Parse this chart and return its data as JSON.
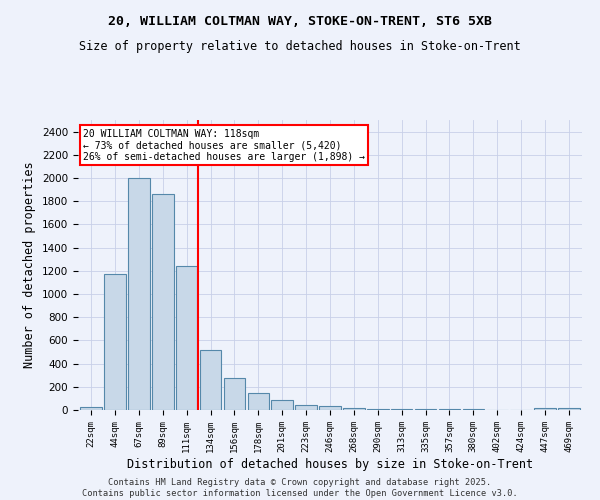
{
  "title1": "20, WILLIAM COLTMAN WAY, STOKE-ON-TRENT, ST6 5XB",
  "title2": "Size of property relative to detached houses in Stoke-on-Trent",
  "xlabel": "Distribution of detached houses by size in Stoke-on-Trent",
  "ylabel": "Number of detached properties",
  "categories": [
    "22sqm",
    "44sqm",
    "67sqm",
    "89sqm",
    "111sqm",
    "134sqm",
    "156sqm",
    "178sqm",
    "201sqm",
    "223sqm",
    "246sqm",
    "268sqm",
    "290sqm",
    "313sqm",
    "335sqm",
    "357sqm",
    "380sqm",
    "402sqm",
    "424sqm",
    "447sqm",
    "469sqm"
  ],
  "values": [
    25,
    1170,
    2000,
    1860,
    1240,
    520,
    275,
    150,
    90,
    40,
    35,
    20,
    12,
    7,
    6,
    5,
    5,
    3,
    2,
    15,
    15
  ],
  "bar_color": "#c8d8e8",
  "bar_edge_color": "#5588aa",
  "ylim": [
    0,
    2500
  ],
  "yticks": [
    0,
    200,
    400,
    600,
    800,
    1000,
    1200,
    1400,
    1600,
    1800,
    2000,
    2200,
    2400
  ],
  "annotation_line1": "20 WILLIAM COLTMAN WAY: 118sqm",
  "annotation_line2": "← 73% of detached houses are smaller (5,420)",
  "annotation_line3": "26% of semi-detached houses are larger (1,898) →",
  "footer1": "Contains HM Land Registry data © Crown copyright and database right 2025.",
  "footer2": "Contains public sector information licensed under the Open Government Licence v3.0.",
  "bg_color": "#eef2fb",
  "grid_color": "#c8d0e8"
}
